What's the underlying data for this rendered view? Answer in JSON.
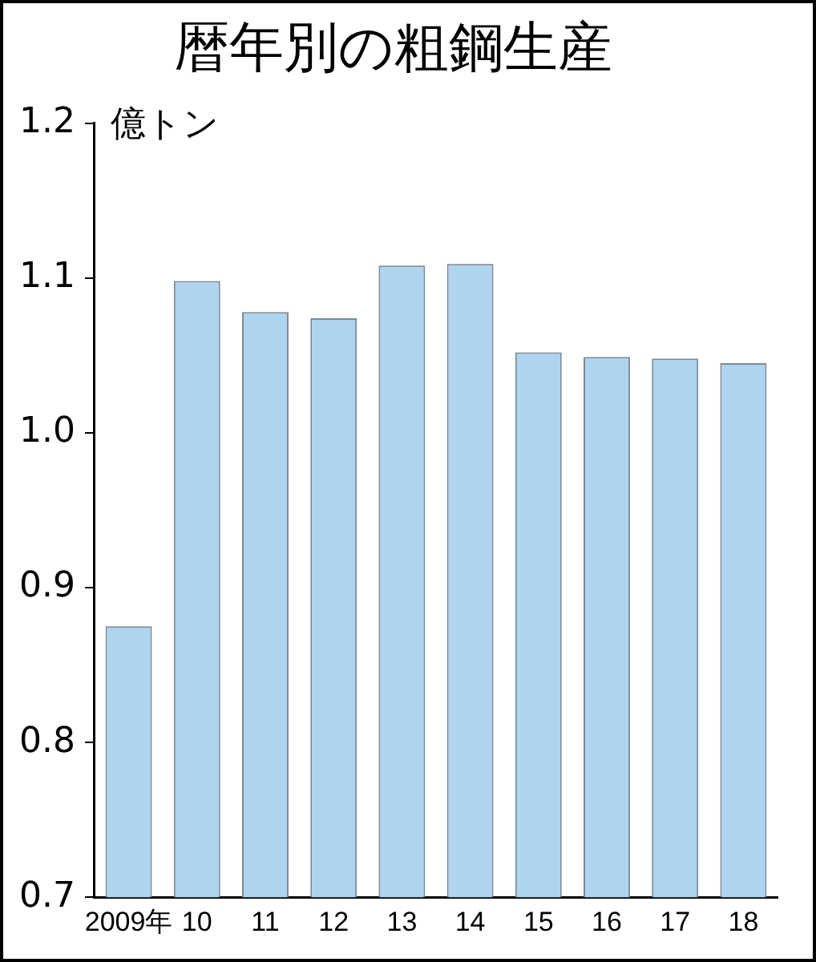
{
  "chart_data": {
    "type": "bar",
    "title": "暦年別の粗鋼生産",
    "ylabel": "億トン",
    "categories": [
      "2009年",
      "10",
      "11",
      "12",
      "13",
      "14",
      "15",
      "16",
      "17",
      "18"
    ],
    "values": [
      0.875,
      1.098,
      1.078,
      1.074,
      1.108,
      1.109,
      1.052,
      1.049,
      1.048,
      1.045
    ],
    "color": "#aed4ef",
    "ylim": [
      0.7,
      1.2
    ],
    "yticks": [
      {
        "value": 0.7,
        "label": "0.7"
      },
      {
        "value": 0.8,
        "label": "0.8"
      },
      {
        "value": 0.9,
        "label": "0.9"
      },
      {
        "value": 1,
        "label": "1.0"
      },
      {
        "value": 1.1,
        "label": "1.1"
      },
      {
        "value": 1.2,
        "label": "1.2"
      }
    ],
    "grid": false,
    "legend": false
  }
}
